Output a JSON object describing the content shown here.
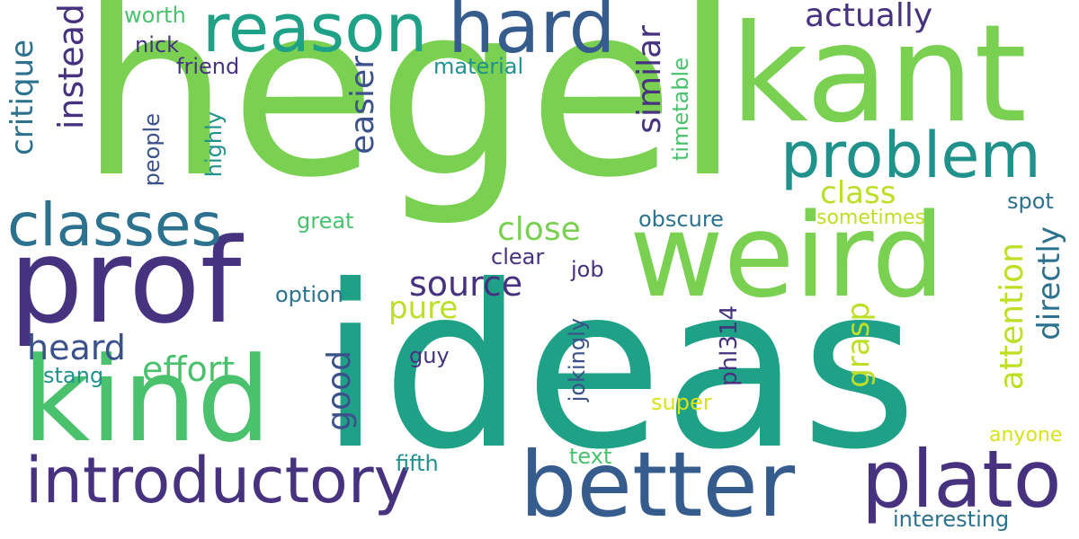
{
  "palette": {
    "dark_purple": "#46327e",
    "indigo": "#3b518b",
    "blue": "#365c8d",
    "teal_blue": "#2c728e",
    "teal": "#21918c",
    "green_teal": "#1fa187",
    "green": "#4ac16d",
    "light_green": "#7ad151",
    "lime": "#bddf26",
    "yellow": "#d8e219"
  },
  "words": {
    "hegel": "hegel",
    "ideas": "ideas",
    "kant": "kant",
    "weird": "weird",
    "prof": "prof",
    "kind": "kind",
    "better": "better",
    "plato": "plato",
    "introductory": "introductory",
    "reason": "reason",
    "hard": "hard",
    "problem": "problem",
    "classes": "classes",
    "actually": "actually",
    "critique": "critique",
    "instead": "instead",
    "easier": "easier",
    "similar": "similar",
    "timetable": "timetable",
    "worth": "worth",
    "nick": "nick",
    "friend": "friend",
    "material": "material",
    "people": "people",
    "highly": "highly",
    "close": "close",
    "class": "class",
    "great": "great",
    "obscure": "obscure",
    "sometimes": "sometimes",
    "spot": "spot",
    "source": "source",
    "pure": "pure",
    "clear": "clear",
    "job": "job",
    "option": "option",
    "heard": "heard",
    "effort": "effort",
    "stang": "stang",
    "good": "good",
    "guy": "guy",
    "grasp": "grasp",
    "attention": "attention",
    "directly": "directly",
    "phl314": "phl314",
    "jokingly": "jokingly",
    "super": "super",
    "text": "text",
    "fifth": "fifth",
    "anyone": "anyone",
    "interesting": "interesting"
  }
}
